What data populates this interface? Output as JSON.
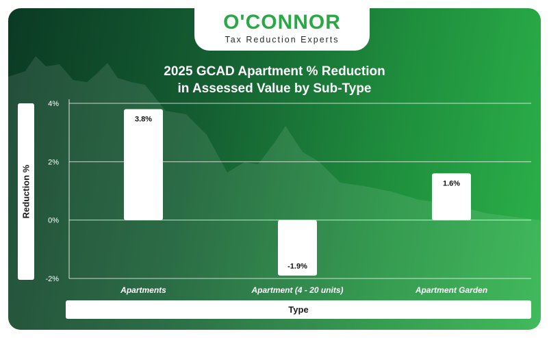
{
  "brand": {
    "name": "O'CONNOR",
    "tagline": "Tax Reduction Experts"
  },
  "colors": {
    "brand_green": "#2aa845",
    "bar_fill": "#ffffff",
    "grid": "#ffffff"
  },
  "chart_data": {
    "type": "bar",
    "title": "2025 GCAD Apartment % Reduction in Assessed Value by Sub-Type",
    "title_lines": [
      "2025 GCAD Apartment % Reduction",
      "in Assessed Value by Sub-Type"
    ],
    "xlabel": "Type",
    "ylabel": "Reduction %",
    "categories": [
      "Apartments",
      "Apartment (4 - 20 units)",
      "Apartment Garden"
    ],
    "values": [
      3.8,
      -1.9,
      1.6
    ],
    "data_labels": [
      "3.8%",
      "-1.9%",
      "1.6%"
    ],
    "yticks": [
      4,
      2,
      0,
      -2
    ],
    "ytick_labels": [
      "4%",
      "2%",
      "0%",
      "-2%"
    ],
    "ylim": [
      -2,
      4
    ],
    "grid": true,
    "legend": "none"
  }
}
